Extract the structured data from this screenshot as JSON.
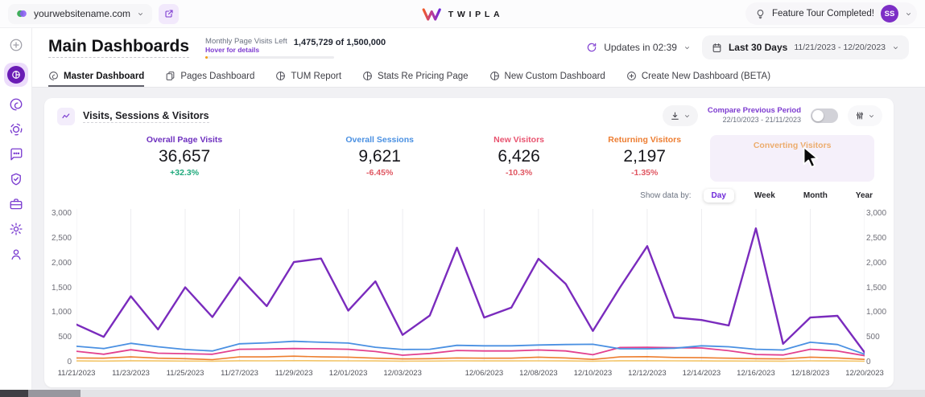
{
  "top_bar": {
    "website_selector": {
      "label": "yourwebsitename.com"
    },
    "logo_text": "TWIPLA",
    "feature_tour_label": "Feature Tour Completed!",
    "avatar_initials": "SS"
  },
  "sidebar": {
    "icons": [
      "add-website",
      "dashboards",
      "visitor-behavior",
      "company-reveal",
      "communication",
      "privacy-center",
      "modules",
      "settings",
      "support"
    ],
    "active": "dashboards"
  },
  "header": {
    "title": "Main Dashboards",
    "quota": {
      "label": "Monthly Page Visits Left",
      "hover_link": "Hover for details",
      "value": "1,475,729 of 1,500,000",
      "progress_pct": 1.8
    },
    "updates_label": "Updates in 02:39",
    "date_filter": {
      "label": "Last 30 Days",
      "range": "11/21/2023 - 12/20/2023"
    }
  },
  "tabs": [
    {
      "label": "Master Dashboard",
      "active": true
    },
    {
      "label": "Pages Dashboard",
      "active": false
    },
    {
      "label": "TUM Report",
      "active": false
    },
    {
      "label": "Stats Re Pricing Page",
      "active": false
    },
    {
      "label": "New Custom Dashboard",
      "active": false
    },
    {
      "label": "Create New Dashboard (BETA)",
      "active": false
    }
  ],
  "card": {
    "title": "Visits, Sessions & Visitors",
    "compare": {
      "label": "Compare Previous Period",
      "range": "22/10/2023 - 21/11/2023",
      "enabled": false
    },
    "stats": [
      {
        "label": "Overall Page Visits",
        "value": "36,657",
        "change": "+32.3%",
        "color": "#6E30BF",
        "direction": "up"
      },
      {
        "label": "Overall Sessions",
        "value": "9,621",
        "change": "-6.45%",
        "color": "#4A90E2",
        "direction": "down"
      },
      {
        "label": "New Visitors",
        "value": "6,426",
        "change": "-10.3%",
        "color": "#E8536F",
        "direction": "down"
      },
      {
        "label": "Returning Visitors",
        "value": "2,197",
        "change": "-1.35%",
        "color": "#ED7D31",
        "direction": "down"
      },
      {
        "label": "Converting Visitors",
        "value": "",
        "change": "",
        "color": "#E9963E",
        "direction": "none",
        "highlighted": true
      }
    ],
    "colors": {
      "positive": "#1FA97C",
      "negative": "#E05661"
    },
    "show_data_by": {
      "label": "Show data by:",
      "options": [
        "Day",
        "Week",
        "Month",
        "Year"
      ],
      "selected": "Day"
    }
  },
  "chart_data": {
    "type": "line",
    "title": "Visits, Sessions & Visitors",
    "xlabel": "",
    "ylabel": "",
    "ylim": [
      0,
      3000
    ],
    "y_ticks": [
      "0",
      "500",
      "1,000",
      "1,500",
      "2,000",
      "2,500",
      "3,000"
    ],
    "grid": "vertical-only",
    "legend_position": "none",
    "categories": [
      "11/21/2023",
      "11/22/2023",
      "11/23/2023",
      "11/24/2023",
      "11/25/2023",
      "11/26/2023",
      "11/27/2023",
      "11/28/2023",
      "11/29/2023",
      "11/30/2023",
      "12/01/2023",
      "12/02/2023",
      "12/03/2023",
      "12/04/2023",
      "12/05/2023",
      "12/06/2023",
      "12/07/2023",
      "12/08/2023",
      "12/09/2023",
      "12/10/2023",
      "12/11/2023",
      "12/12/2023",
      "12/13/2023",
      "12/14/2023",
      "12/15/2023",
      "12/16/2023",
      "12/17/2023",
      "12/18/2023",
      "12/19/2023",
      "12/20/2023"
    ],
    "x_tick_labels": [
      "11/21/2023",
      "11/23/2023",
      "11/25/2023",
      "11/27/2023",
      "11/29/2023",
      "12/01/2023",
      "12/03/2023",
      "12/06/2023",
      "12/08/2023",
      "12/10/2023",
      "12/12/2023",
      "12/14/2023",
      "12/16/2023",
      "12/18/2023",
      "12/20/2023"
    ],
    "x_tick_indices": [
      0,
      2,
      4,
      6,
      8,
      10,
      12,
      15,
      17,
      19,
      21,
      23,
      25,
      27,
      29
    ],
    "series": [
      {
        "name": "Converting Visitors",
        "color": "#F3C568",
        "width": 1.6,
        "values": [
          15,
          12,
          18,
          14,
          12,
          10,
          18,
          16,
          20,
          18,
          16,
          14,
          10,
          12,
          16,
          14,
          14,
          16,
          15,
          10,
          18,
          18,
          16,
          15,
          13,
          11,
          10,
          16,
          14,
          8
        ]
      },
      {
        "name": "Returning Visitors",
        "color": "#ED7E2E",
        "width": 1.6,
        "values": [
          75,
          70,
          95,
          70,
          60,
          40,
          95,
          95,
          110,
          95,
          90,
          70,
          55,
          60,
          75,
          70,
          70,
          90,
          75,
          45,
          95,
          100,
          85,
          80,
          70,
          60,
          55,
          90,
          75,
          45
        ]
      },
      {
        "name": "New Visitors",
        "color": "#E2418F",
        "width": 1.8,
        "values": [
          210,
          150,
          240,
          170,
          160,
          150,
          250,
          255,
          265,
          260,
          250,
          205,
          130,
          165,
          225,
          215,
          215,
          235,
          215,
          140,
          285,
          290,
          280,
          275,
          220,
          145,
          135,
          250,
          215,
          120
        ]
      },
      {
        "name": "Overall Sessions",
        "color": "#4A90E2",
        "width": 1.8,
        "values": [
          310,
          265,
          370,
          300,
          245,
          215,
          360,
          380,
          410,
          390,
          375,
          290,
          245,
          250,
          330,
          320,
          320,
          335,
          345,
          350,
          260,
          260,
          270,
          320,
          300,
          250,
          235,
          390,
          345,
          150
        ]
      },
      {
        "name": "Overall Page Visits",
        "color": "#7A2BBD",
        "width": 2.4,
        "values": [
          750,
          500,
          1320,
          650,
          1500,
          900,
          1700,
          1120,
          2010,
          2080,
          1030,
          1620,
          540,
          930,
          2300,
          890,
          1090,
          2075,
          1570,
          620,
          1500,
          2330,
          890,
          840,
          730,
          2690,
          360,
          890,
          925,
          185
        ]
      }
    ]
  }
}
